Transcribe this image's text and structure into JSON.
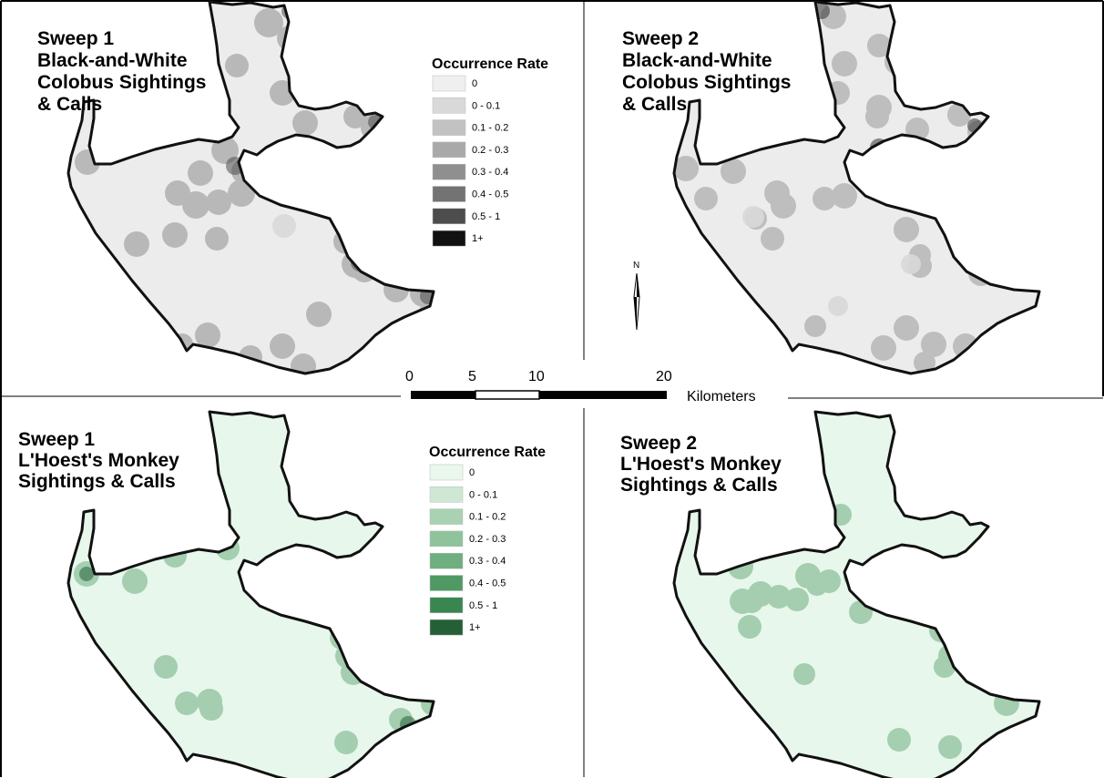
{
  "panels": {
    "top_left": {
      "title_lines": [
        "Sweep 1",
        "Black-and-White",
        "Colobus Sightings",
        "& Calls"
      ]
    },
    "top_right": {
      "title_lines": [
        "Sweep 2",
        "Black-and-White",
        "Colobus Sightings",
        "& Calls"
      ]
    },
    "bottom_left": {
      "title_lines": [
        "Sweep 1",
        "L'Hoest's Monkey",
        "Sightings & Calls"
      ]
    },
    "bottom_right": {
      "title_lines": [
        "Sweep 2",
        "L'Hoest's Monkey",
        "Sightings & Calls"
      ]
    }
  },
  "legend_gray": {
    "title": "Occurrence Rate",
    "classes": [
      "0",
      "0 - 0.1",
      "0.1 - 0.2",
      "0.2 - 0.3",
      "0.3 - 0.4",
      "0.4 - 0.5",
      "0.5 - 1",
      "1+"
    ],
    "colors": [
      "#efefef",
      "#d9d9d9",
      "#c2c2c2",
      "#a9a9a9",
      "#8f8f8f",
      "#737373",
      "#4d4d4d",
      "#111111"
    ]
  },
  "legend_green": {
    "title": "Occurrence Rate",
    "classes": [
      "0",
      "0 - 0.1",
      "0.1 - 0.2",
      "0.2 - 0.3",
      "0.3 - 0.4",
      "0.4 - 0.5",
      "0.5 - 1",
      "1+"
    ],
    "colors": [
      "#e9f7ec",
      "#cfe8d4",
      "#a9d2b2",
      "#8fc39b",
      "#6eae7f",
      "#4f9a64",
      "#3a8650",
      "#245f36"
    ]
  },
  "scale_bar": {
    "ticks": [
      "0",
      "5",
      "10",
      "20"
    ],
    "unit": "Kilometers"
  },
  "north_arrow": {
    "label": "N"
  },
  "colors": {
    "map_fill_gray": "#ececec",
    "map_fill_green": "#e7f7ec",
    "outline": "#111111"
  }
}
